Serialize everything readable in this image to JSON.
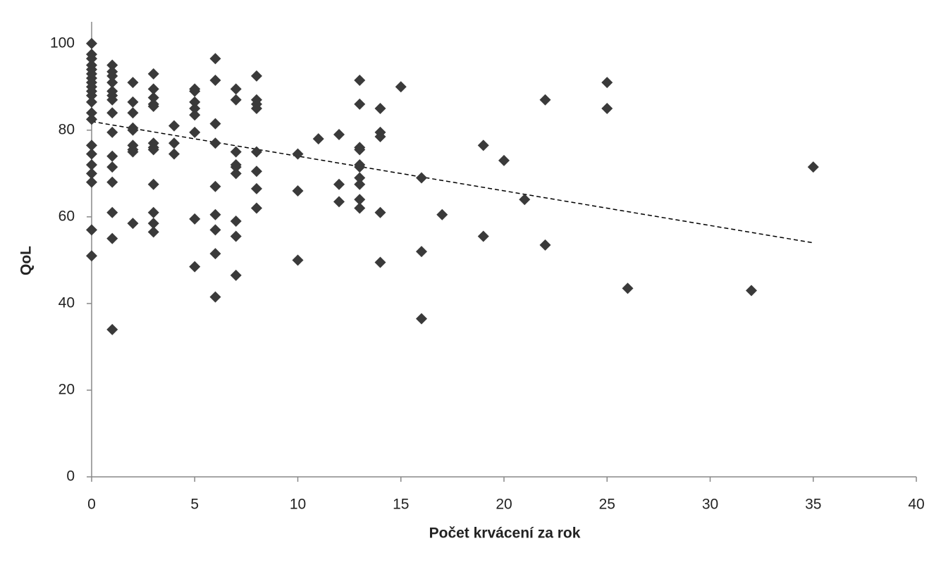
{
  "chart_data": {
    "type": "scatter",
    "x_label": "Počet krvácení za rok",
    "y_label": "QoL",
    "color": "#3a3a3a",
    "x": [
      0,
      0,
      0,
      0,
      0,
      0,
      0,
      0,
      0,
      0,
      0,
      0,
      0,
      0,
      0,
      0,
      0,
      0,
      0,
      0,
      0,
      1,
      1,
      1,
      1,
      1,
      1,
      1,
      1,
      1,
      1,
      1,
      1,
      1,
      1,
      1,
      2,
      2,
      2,
      2,
      2,
      2,
      2,
      2,
      2,
      3,
      3,
      3,
      3,
      3,
      3,
      3,
      3,
      3,
      3,
      3,
      3,
      4,
      4,
      4,
      5,
      5,
      5,
      5,
      5,
      5,
      5,
      5,
      6,
      6,
      6,
      6,
      6,
      6,
      6,
      6,
      6,
      7,
      7,
      7,
      7,
      7,
      7,
      7,
      7,
      7,
      8,
      8,
      8,
      8,
      8,
      8,
      8,
      8,
      10,
      10,
      10,
      11,
      12,
      12,
      12,
      13,
      13,
      13,
      13,
      13,
      13,
      13,
      13,
      13,
      13,
      14,
      14,
      14,
      14,
      14,
      15,
      16,
      16,
      16,
      17,
      19,
      19,
      20,
      21,
      22,
      22,
      25,
      25,
      26,
      32,
      35
    ],
    "values": [
      100,
      97.5,
      96.5,
      95,
      94,
      93,
      92,
      91,
      90,
      89,
      88,
      86.5,
      84,
      82.5,
      76.5,
      74.5,
      72,
      70,
      68,
      57,
      51,
      95,
      93.5,
      92.5,
      91,
      89,
      88,
      87,
      84,
      79.5,
      74,
      71.5,
      68,
      61,
      55,
      34,
      91,
      86.5,
      84,
      80.5,
      80,
      76.5,
      75.5,
      75,
      58.5,
      93,
      89.5,
      87.5,
      86,
      85.5,
      77,
      76,
      75.5,
      67.5,
      61,
      58.5,
      56.5,
      81,
      77,
      74.5,
      89.5,
      89,
      86.5,
      85,
      83.5,
      79.5,
      59.5,
      48.5,
      96.5,
      91.5,
      81.5,
      77,
      67,
      60.5,
      57,
      51.5,
      41.5,
      89.5,
      87,
      75,
      72,
      71.5,
      70,
      59,
      55.5,
      46.5,
      92.5,
      87,
      86,
      85,
      75,
      70.5,
      66.5,
      62,
      74.5,
      66,
      50,
      78,
      79,
      67.5,
      63.5,
      91.5,
      86,
      76,
      75.5,
      72,
      71.5,
      69,
      67.5,
      64,
      62,
      85,
      79.5,
      78.5,
      61,
      49.5,
      90,
      69,
      52,
      36.5,
      60.5,
      76.5,
      55.5,
      73,
      64,
      87,
      53.5,
      91,
      85,
      43.5,
      43,
      71.5
    ],
    "trendline": {
      "x": [
        0,
        35
      ],
      "values": [
        82,
        54
      ]
    },
    "xlim": [
      0,
      40
    ],
    "xticks": [
      0,
      5,
      10,
      15,
      20,
      25,
      30,
      35,
      40
    ],
    "ylim": [
      0,
      105
    ],
    "yticks": [
      0,
      20,
      40,
      60,
      80,
      100
    ]
  }
}
